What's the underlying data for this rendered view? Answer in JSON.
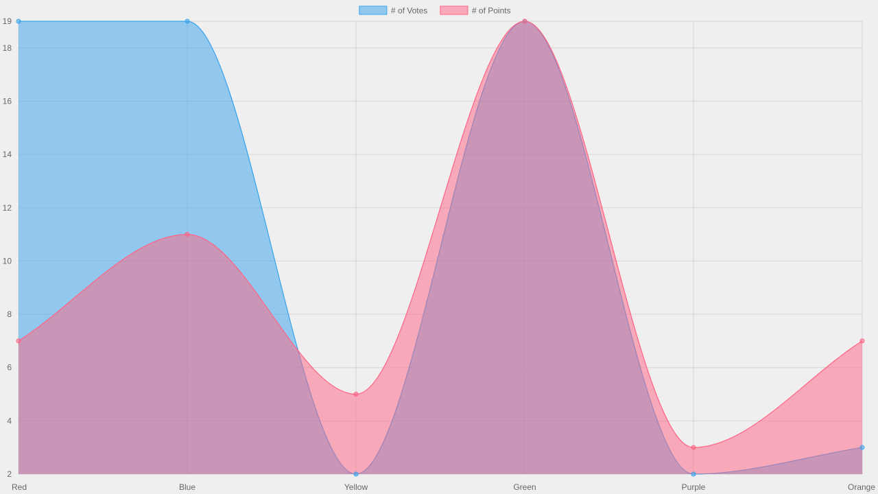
{
  "chart_data": {
    "type": "area",
    "categories": [
      "Red",
      "Blue",
      "Yellow",
      "Green",
      "Purple",
      "Orange"
    ],
    "series": [
      {
        "name": "# of Votes",
        "values": [
          19,
          19,
          2,
          19,
          2,
          3
        ],
        "stroke": "#36a2eb",
        "fill": "rgba(54,162,235,0.5)"
      },
      {
        "name": "# of Points",
        "values": [
          7,
          11,
          5,
          19,
          3,
          7
        ],
        "stroke": "#ff6384",
        "fill": "rgba(255,99,132,0.5)"
      }
    ],
    "ylim": [
      2,
      19
    ],
    "yticks": [
      2,
      4,
      6,
      8,
      10,
      12,
      14,
      16,
      18,
      19
    ],
    "grid": true,
    "legend": "top-center",
    "title": "",
    "xlabel": "",
    "ylabel": ""
  }
}
